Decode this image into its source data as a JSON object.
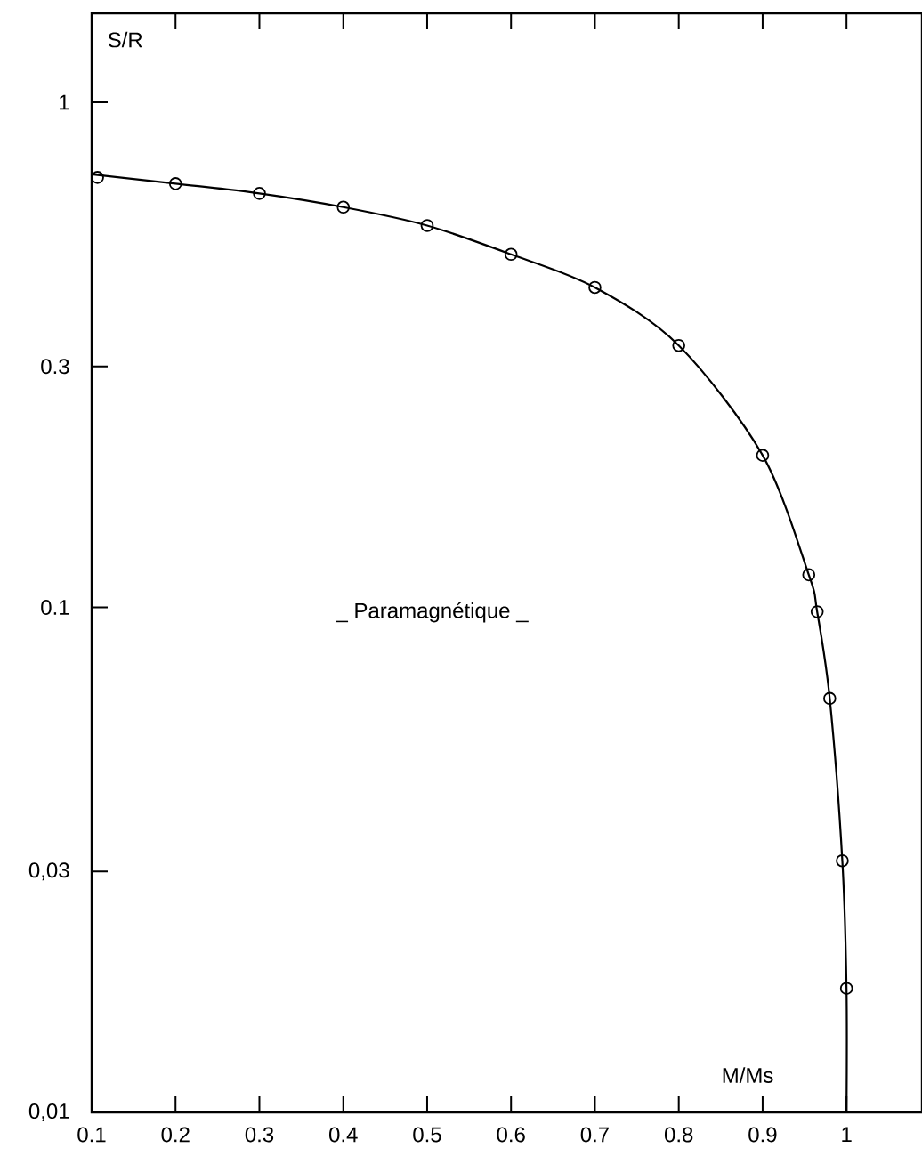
{
  "chart_data": {
    "type": "line",
    "xlabel": "M/Ms",
    "ylabel": "S/R",
    "log": "y",
    "xlim": [
      0.1,
      1.09
    ],
    "ylim": [
      0.01,
      1.5
    ],
    "xticks": [
      0.1,
      0.2,
      0.3,
      0.4,
      0.5,
      0.6,
      0.7,
      0.8,
      0.9,
      1
    ],
    "yticks": [
      {
        "value": 0.01,
        "label": "0,01"
      },
      {
        "value": 0.03,
        "label": "0,03"
      },
      0.1,
      0.3,
      1
    ],
    "annotations": [
      "_ Paramagnétique _"
    ],
    "grid": false,
    "series": [
      {
        "color": "#000000",
        "marker": "none",
        "x": [
          0.1,
          0.2,
          0.3,
          0.4,
          0.5,
          0.6,
          0.7,
          0.8,
          0.9,
          0.955,
          0.965,
          0.98,
          0.995,
          1.0,
          1.0
        ],
        "values": [
          0.72,
          0.69,
          0.66,
          0.62,
          0.57,
          0.5,
          0.43,
          0.33,
          0.2,
          0.116,
          0.098,
          0.066,
          0.0315,
          0.0176,
          0.01
        ]
      },
      {
        "type": "scatter",
        "color": "#000000",
        "marker": "circle",
        "x": [
          0.107,
          0.2,
          0.3,
          0.4,
          0.5,
          0.6,
          0.7,
          0.8,
          0.9,
          0.955,
          0.965,
          0.98,
          0.995,
          1.0
        ],
        "values": [
          0.71,
          0.69,
          0.66,
          0.62,
          0.57,
          0.5,
          0.43,
          0.33,
          0.2,
          0.116,
          0.098,
          0.066,
          0.0315,
          0.0176
        ]
      }
    ]
  }
}
